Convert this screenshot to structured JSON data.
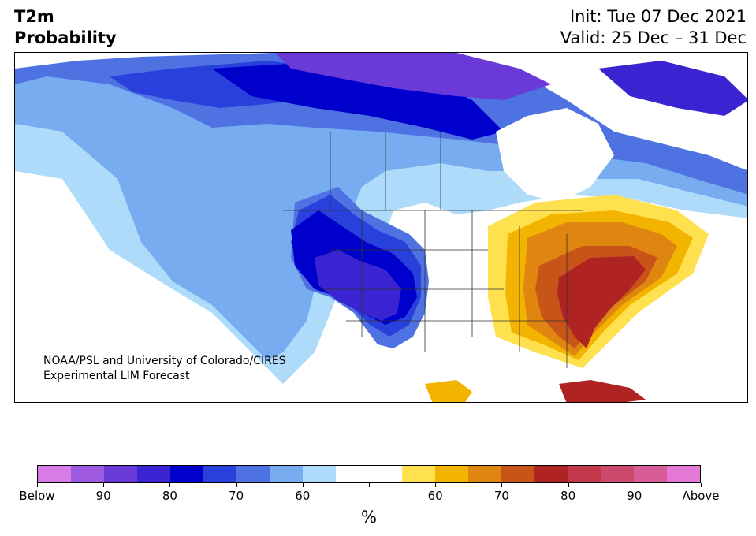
{
  "header": {
    "variable": "T2m",
    "product": "Probability",
    "init": "Init: Tue 07 Dec 2021",
    "valid": "Valid: 25 Dec – 31 Dec"
  },
  "credit": {
    "line1": "NOAA/PSL and University of Colorado/CIRES",
    "line2": "Experimental LIM Forecast"
  },
  "colorbar": {
    "unit": "%",
    "colors": [
      "#d77ce6",
      "#9d5ae0",
      "#6a3ad9",
      "#3a23d1",
      "#0000cc",
      "#2a40dc",
      "#4f72e3",
      "#77adf0",
      "#afdbfb",
      "#ffffff",
      "#ffffff",
      "#ffe14f",
      "#f2b400",
      "#df8610",
      "#c85418",
      "#b02323",
      "#c0384a",
      "#cc4a6d",
      "#d75c98",
      "#e577d7"
    ],
    "tick_labels": [
      "Below",
      "90",
      "80",
      "70",
      "60",
      "",
      "60",
      "70",
      "80",
      "90",
      "Above"
    ]
  },
  "map": {
    "below_colors": {
      "b90": "#6a3ad9",
      "b80": "#3a23d1",
      "b75": "#0000cc",
      "b70": "#2a40dc",
      "b65": "#4f72e3",
      "b60": "#77adf0",
      "b55": "#afdbfb"
    },
    "above_colors": {
      "a55": "#ffe14f",
      "a60": "#f2b400",
      "a65": "#df8610",
      "a70": "#c85418",
      "a75": "#b02323"
    }
  }
}
